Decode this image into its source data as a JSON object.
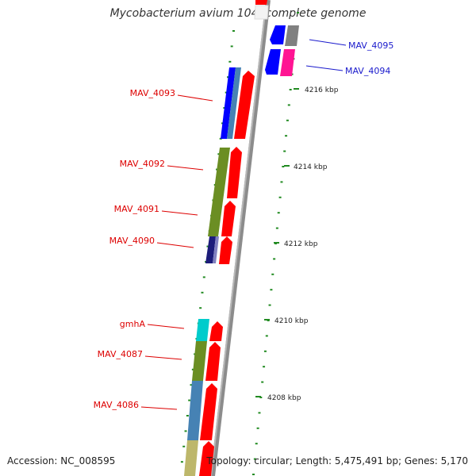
{
  "title": "Mycobacterium avium 104, complete genome",
  "footer": {
    "accession": "Accession: NC_008595",
    "topology": "Topology: circular; Length: 5,475,491 bp; Genes: 5,170"
  },
  "scale_ticks": [
    {
      "label": "4216 kbp"
    },
    {
      "label": "4214 kbp"
    },
    {
      "label": "4212 kbp"
    },
    {
      "label": "4210 kbp"
    },
    {
      "label": "4208 kbp"
    }
  ],
  "gene_labels": [
    {
      "text": "MAV_4095",
      "color": "#1a1acc"
    },
    {
      "text": "MAV_4094",
      "color": "#1a1acc"
    },
    {
      "text": "MAV_4093",
      "color": "#dd0000"
    },
    {
      "text": "MAV_4092",
      "color": "#dd0000"
    },
    {
      "text": "MAV_4091",
      "color": "#dd0000"
    },
    {
      "text": "MAV_4090",
      "color": "#dd0000"
    },
    {
      "text": "gmhA",
      "color": "#dd0000"
    },
    {
      "text": "MAV_4087",
      "color": "#dd0000"
    },
    {
      "text": "MAV_4086",
      "color": "#dd0000"
    }
  ],
  "colors": {
    "forward_gene": "#ff0000",
    "reverse_gene": "#1a1acc",
    "backbone": "#8c8c8c",
    "tick": "#228b22",
    "cog_blue": "#0000ff",
    "cog_steel": "#4682b4",
    "cog_olive": "#6b8e23",
    "cog_cyan": "#00cccc",
    "cog_khaki": "#bdb76b",
    "cog_magenta": "#ff1493",
    "cog_gray": "#808080"
  }
}
